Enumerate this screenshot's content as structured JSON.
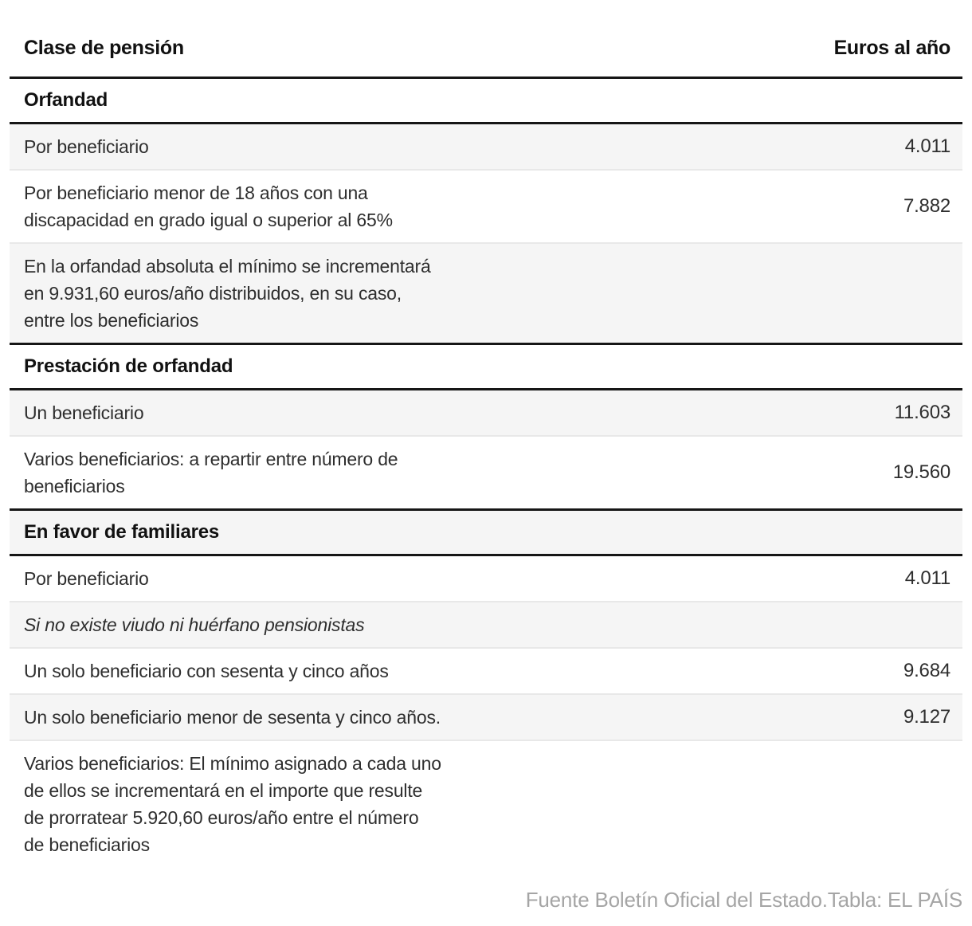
{
  "table": {
    "header": {
      "left": "Clase de pensión",
      "right": "Euros al año"
    },
    "rows": [
      {
        "type": "section",
        "label": "Orfandad",
        "value": ""
      },
      {
        "type": "data",
        "label": "Por beneficiario",
        "value": "4.011"
      },
      {
        "type": "data",
        "label": "Por beneficiario menor de 18 años con una\ndiscapacidad en grado igual o superior al 65%",
        "value": "7.882"
      },
      {
        "type": "data",
        "label": "En la orfandad absoluta el mínimo se incrementará\nen 9.931,60 euros/año distribuidos, en su caso,\nentre los beneficiarios",
        "value": ""
      },
      {
        "type": "section",
        "label": "Prestación de orfandad",
        "value": ""
      },
      {
        "type": "data",
        "label": "Un beneficiario",
        "value": "11.603"
      },
      {
        "type": "data",
        "label": "Varios beneficiarios: a repartir entre número de\nbeneficiarios",
        "value": "19.560"
      },
      {
        "type": "section",
        "label": "En favor de familiares",
        "value": ""
      },
      {
        "type": "data",
        "label": "Por beneficiario",
        "value": "4.011"
      },
      {
        "type": "data-italic",
        "label": "Si no existe viudo ni huérfano pensionistas",
        "value": ""
      },
      {
        "type": "data",
        "label": "Un solo beneficiario con sesenta y cinco años",
        "value": "9.684"
      },
      {
        "type": "data",
        "label": "Un solo beneficiario menor de sesenta y cinco años.",
        "value": "9.127"
      },
      {
        "type": "data",
        "label": "Varios beneficiarios: El mínimo asignado a cada uno\nde ellos se incrementará en el importe que resulte\nde prorratear 5.920,60 euros/año entre el número\nde beneficiarios",
        "value": ""
      }
    ]
  },
  "footer": {
    "text": "Fuente Boletín Oficial del Estado.Tabla: EL PAÍS"
  },
  "colors": {
    "stripe": "#f5f5f5",
    "rule_heavy": "#161616",
    "rule_light": "#e8e8e8",
    "body_text": "#2e2e2e",
    "heading_text": "#111111",
    "source_text": "#a5a5a5"
  },
  "chart_data": {
    "type": "table",
    "columns": [
      "Clase de pensión",
      "Euros al año"
    ],
    "sections": [
      {
        "name": "Orfandad",
        "rows": [
          {
            "label": "Por beneficiario",
            "euros_al_ano": 4011
          },
          {
            "label": "Por beneficiario menor de 18 años con una discapacidad en grado igual o superior al 65%",
            "euros_al_ano": 7882
          },
          {
            "label": "En la orfandad absoluta el mínimo se incrementará en 9.931,60 euros/año distribuidos, en su caso, entre los beneficiarios",
            "euros_al_ano": null
          }
        ]
      },
      {
        "name": "Prestación de orfandad",
        "rows": [
          {
            "label": "Un beneficiario",
            "euros_al_ano": 11603
          },
          {
            "label": "Varios beneficiarios: a repartir entre número de beneficiarios",
            "euros_al_ano": 19560
          }
        ]
      },
      {
        "name": "En favor de familiares",
        "rows": [
          {
            "label": "Por beneficiario",
            "euros_al_ano": 4011
          },
          {
            "label": "Si no existe viudo ni huérfano pensionistas",
            "euros_al_ano": null
          },
          {
            "label": "Un solo beneficiario con sesenta y cinco años",
            "euros_al_ano": 9684
          },
          {
            "label": "Un solo beneficiario menor de sesenta y cinco años.",
            "euros_al_ano": 9127
          },
          {
            "label": "Varios beneficiarios: El mínimo asignado a cada uno de ellos se incrementará en el importe que resulte de prorratear 5.920,60 euros/año entre el número de beneficiarios",
            "euros_al_ano": null
          }
        ]
      }
    ],
    "source": "Fuente Boletín Oficial del Estado.Tabla: EL PAÍS"
  }
}
